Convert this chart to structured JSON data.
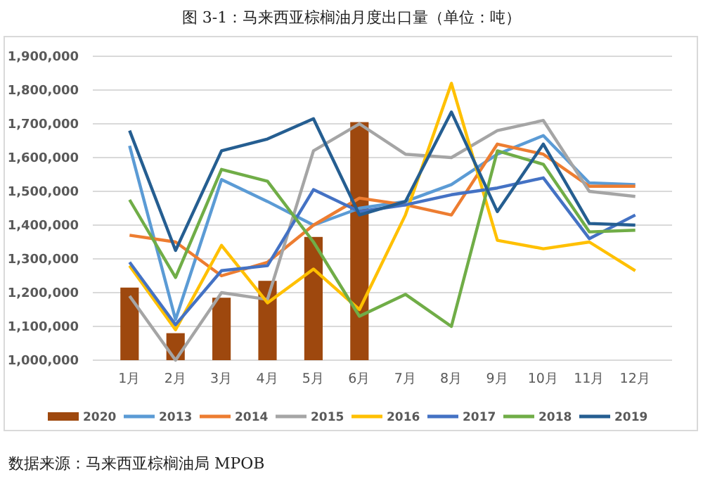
{
  "chart_data": {
    "type": "bar",
    "title": "图 3-1：马来西亚棕榈油月度出口量（单位：吨）",
    "categories": [
      "1月",
      "2月",
      "3月",
      "4月",
      "5月",
      "6月",
      "7月",
      "8月",
      "9月",
      "10月",
      "11月",
      "12月"
    ],
    "series": [
      {
        "name": "2020",
        "color": "#9e480e",
        "values": [
          1215000,
          1080000,
          1185000,
          1235000,
          1365000,
          1705000,
          null,
          null,
          null,
          null,
          null,
          null
        ]
      },
      {
        "name": "2013",
        "type": "line",
        "color": "#5b9bd5",
        "values": [
          1635000,
          1120000,
          1535000,
          1470000,
          1400000,
          1450000,
          1470000,
          1520000,
          1610000,
          1665000,
          1525000,
          1520000
        ]
      },
      {
        "name": "2014",
        "type": "line",
        "color": "#ed7d31",
        "values": [
          1370000,
          1350000,
          1250000,
          1290000,
          1400000,
          1480000,
          1460000,
          1430000,
          1640000,
          1610000,
          1515000,
          1515000
        ]
      },
      {
        "name": "2015",
        "type": "line",
        "color": "#a5a5a5",
        "values": [
          1190000,
          1000000,
          1200000,
          1180000,
          1620000,
          1700000,
          1610000,
          1600000,
          1680000,
          1710000,
          1500000,
          1485000
        ]
      },
      {
        "name": "2016",
        "type": "line",
        "color": "#ffc000",
        "values": [
          1280000,
          1090000,
          1340000,
          1170000,
          1270000,
          1150000,
          1430000,
          1820000,
          1355000,
          1330000,
          1350000,
          1265000
        ]
      },
      {
        "name": "2017",
        "type": "line",
        "color": "#4472c4",
        "values": [
          1290000,
          1105000,
          1265000,
          1280000,
          1505000,
          1440000,
          1460000,
          1490000,
          1510000,
          1540000,
          1360000,
          1430000
        ]
      },
      {
        "name": "2018",
        "type": "line",
        "color": "#70ad47",
        "values": [
          1475000,
          1245000,
          1565000,
          1530000,
          1350000,
          1130000,
          1195000,
          1100000,
          1620000,
          1580000,
          1380000,
          1385000
        ]
      },
      {
        "name": "2019",
        "type": "line",
        "color": "#255e91",
        "values": [
          1680000,
          1325000,
          1620000,
          1655000,
          1715000,
          1430000,
          1470000,
          1735000,
          1440000,
          1640000,
          1405000,
          1400000
        ]
      }
    ],
    "ylim": [
      1000000,
      1900000
    ],
    "yticks": [
      {
        "value": 1000000,
        "label": "1,000,000"
      },
      {
        "value": 1100000,
        "label": "1,100,000"
      },
      {
        "value": 1200000,
        "label": "1,200,000"
      },
      {
        "value": 1300000,
        "label": "1,300,000"
      },
      {
        "value": 1400000,
        "label": "1,400,000"
      },
      {
        "value": 1500000,
        "label": "1,500,000"
      },
      {
        "value": 1600000,
        "label": "1,600,000"
      },
      {
        "value": 1700000,
        "label": "1,700,000"
      },
      {
        "value": 1800000,
        "label": "1,800,000"
      },
      {
        "value": 1900000,
        "label": "1,900,000"
      }
    ],
    "grid": "y",
    "legend": "bottom",
    "marker": "none",
    "line_style": "solid",
    "annotations": [
      "数据来源：马来西亚棕榈油局 MPOB"
    ]
  }
}
